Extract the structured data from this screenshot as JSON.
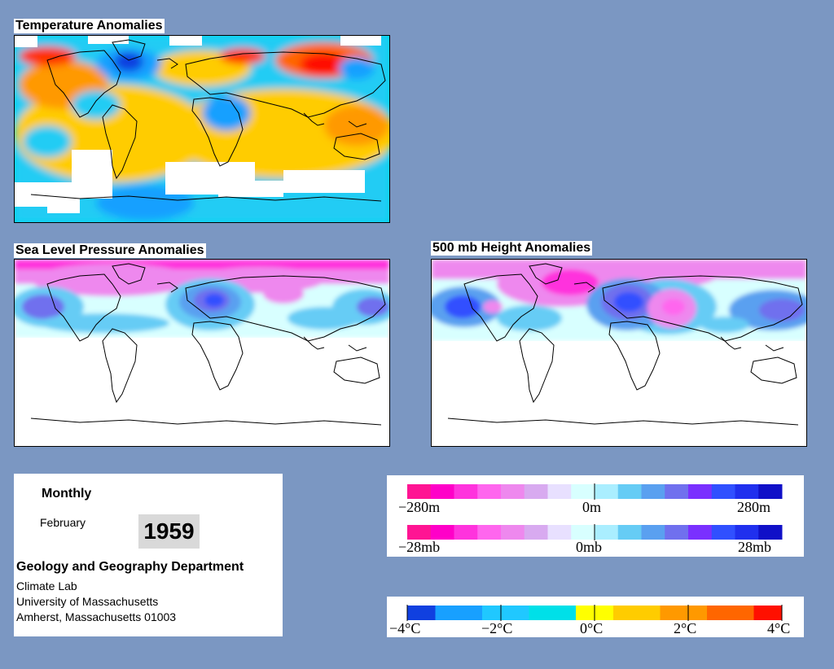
{
  "panels": {
    "temperature": {
      "title": "Temperature Anomalies"
    },
    "slp": {
      "title": "Sea Level Pressure Anomalies"
    },
    "height500": {
      "title": "500 mb Height Anomalies"
    }
  },
  "info": {
    "period": "Monthly",
    "month": "February",
    "year": "1959",
    "department": "Geology and Geography Department",
    "lab": "Climate Lab",
    "university": "University of Massachusetts",
    "address": "Amherst, Massachusetts 01003"
  },
  "legends": {
    "height": {
      "min": "−280m",
      "mid": "0m",
      "max": "280m"
    },
    "pressure": {
      "min": "−28mb",
      "mid": "0mb",
      "max": "28mb"
    },
    "temperature": {
      "ticks": [
        "−4°C",
        "−2°C",
        "0°C",
        "2°C",
        "4°C"
      ]
    }
  },
  "colors": {
    "anomaly_scale": [
      "#ff1493",
      "#ff00c8",
      "#ff33dd",
      "#ff66ee",
      "#ee88ee",
      "#d8aaf0",
      "#e8e0ff",
      "#d8ffff",
      "#aaeeff",
      "#66ccf5",
      "#5aa0f0",
      "#7070ee",
      "#7a30ff",
      "#3050ff",
      "#2030ee",
      "#1010c8"
    ],
    "temperature_scale": [
      "#1040e0",
      "#18a0ff",
      "#20c8ff",
      "#00e0e8",
      "#ffff00",
      "#ffcc00",
      "#ff9900",
      "#ff6600",
      "#ff1000"
    ]
  }
}
